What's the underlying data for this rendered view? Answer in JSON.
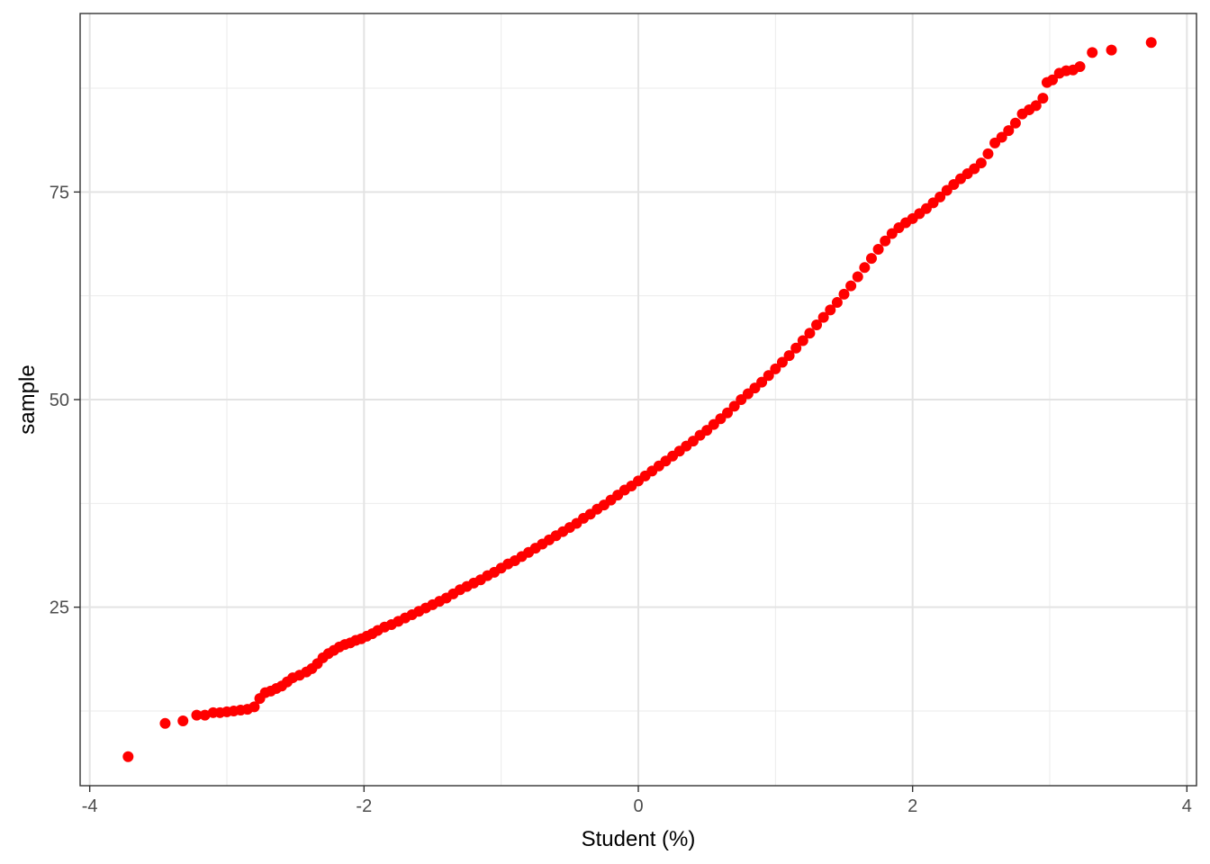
{
  "chart_data": {
    "type": "scatter",
    "title": "",
    "xlabel": "Student (%)",
    "ylabel": "sample",
    "xlim": [
      -4.07,
      4.07
    ],
    "ylim": [
      3.5,
      96.5
    ],
    "x_ticks": [
      -4,
      -2,
      0,
      2,
      4
    ],
    "y_ticks": [
      25,
      50,
      75
    ],
    "x_minor": [
      -3,
      -1,
      1,
      3
    ],
    "y_minor": [
      12.5,
      37.5,
      62.5,
      87.5
    ],
    "grid": true,
    "legend": "none",
    "point_color": "#ff0000",
    "points": [
      {
        "x": -3.72,
        "y": 7.0
      },
      {
        "x": -3.45,
        "y": 11.0
      },
      {
        "x": -3.32,
        "y": 11.3
      },
      {
        "x": -3.22,
        "y": 12.0
      },
      {
        "x": -3.16,
        "y": 12.0
      },
      {
        "x": -3.1,
        "y": 12.3
      },
      {
        "x": -3.05,
        "y": 12.3
      },
      {
        "x": -3.0,
        "y": 12.4
      },
      {
        "x": -2.95,
        "y": 12.5
      },
      {
        "x": -2.9,
        "y": 12.6
      },
      {
        "x": -2.85,
        "y": 12.7
      },
      {
        "x": -2.8,
        "y": 13.0
      },
      {
        "x": -2.76,
        "y": 14.0
      },
      {
        "x": -2.72,
        "y": 14.7
      },
      {
        "x": -2.68,
        "y": 14.9
      },
      {
        "x": -2.64,
        "y": 15.2
      },
      {
        "x": -2.6,
        "y": 15.5
      },
      {
        "x": -2.56,
        "y": 16.0
      },
      {
        "x": -2.52,
        "y": 16.5
      },
      {
        "x": -2.47,
        "y": 16.8
      },
      {
        "x": -2.42,
        "y": 17.2
      },
      {
        "x": -2.38,
        "y": 17.6
      },
      {
        "x": -2.34,
        "y": 18.2
      },
      {
        "x": -2.3,
        "y": 18.9
      },
      {
        "x": -2.26,
        "y": 19.4
      },
      {
        "x": -2.22,
        "y": 19.8
      },
      {
        "x": -2.18,
        "y": 20.2
      },
      {
        "x": -2.14,
        "y": 20.5
      },
      {
        "x": -2.1,
        "y": 20.7
      },
      {
        "x": -2.06,
        "y": 21.0
      },
      {
        "x": -2.02,
        "y": 21.2
      },
      {
        "x": -1.98,
        "y": 21.5
      },
      {
        "x": -1.94,
        "y": 21.8
      },
      {
        "x": -1.9,
        "y": 22.2
      },
      {
        "x": -1.85,
        "y": 22.6
      },
      {
        "x": -1.8,
        "y": 22.9
      },
      {
        "x": -1.75,
        "y": 23.3
      },
      {
        "x": -1.7,
        "y": 23.7
      },
      {
        "x": -1.65,
        "y": 24.1
      },
      {
        "x": -1.6,
        "y": 24.5
      },
      {
        "x": -1.55,
        "y": 24.9
      },
      {
        "x": -1.5,
        "y": 25.3
      },
      {
        "x": -1.45,
        "y": 25.7
      },
      {
        "x": -1.4,
        "y": 26.1
      },
      {
        "x": -1.35,
        "y": 26.6
      },
      {
        "x": -1.3,
        "y": 27.1
      },
      {
        "x": -1.25,
        "y": 27.5
      },
      {
        "x": -1.2,
        "y": 27.9
      },
      {
        "x": -1.15,
        "y": 28.3
      },
      {
        "x": -1.1,
        "y": 28.8
      },
      {
        "x": -1.05,
        "y": 29.2
      },
      {
        "x": -1.0,
        "y": 29.7
      },
      {
        "x": -0.95,
        "y": 30.2
      },
      {
        "x": -0.9,
        "y": 30.6
      },
      {
        "x": -0.85,
        "y": 31.1
      },
      {
        "x": -0.8,
        "y": 31.6
      },
      {
        "x": -0.75,
        "y": 32.1
      },
      {
        "x": -0.7,
        "y": 32.6
      },
      {
        "x": -0.65,
        "y": 33.1
      },
      {
        "x": -0.6,
        "y": 33.6
      },
      {
        "x": -0.55,
        "y": 34.1
      },
      {
        "x": -0.5,
        "y": 34.6
      },
      {
        "x": -0.45,
        "y": 35.1
      },
      {
        "x": -0.4,
        "y": 35.7
      },
      {
        "x": -0.35,
        "y": 36.2
      },
      {
        "x": -0.3,
        "y": 36.8
      },
      {
        "x": -0.25,
        "y": 37.3
      },
      {
        "x": -0.2,
        "y": 37.9
      },
      {
        "x": -0.15,
        "y": 38.5
      },
      {
        "x": -0.1,
        "y": 39.1
      },
      {
        "x": -0.05,
        "y": 39.6
      },
      {
        "x": 0.0,
        "y": 40.2
      },
      {
        "x": 0.05,
        "y": 40.8
      },
      {
        "x": 0.1,
        "y": 41.4
      },
      {
        "x": 0.15,
        "y": 42.0
      },
      {
        "x": 0.2,
        "y": 42.6
      },
      {
        "x": 0.25,
        "y": 43.2
      },
      {
        "x": 0.3,
        "y": 43.8
      },
      {
        "x": 0.35,
        "y": 44.4
      },
      {
        "x": 0.4,
        "y": 45.0
      },
      {
        "x": 0.45,
        "y": 45.7
      },
      {
        "x": 0.5,
        "y": 46.3
      },
      {
        "x": 0.55,
        "y": 47.0
      },
      {
        "x": 0.6,
        "y": 47.7
      },
      {
        "x": 0.65,
        "y": 48.4
      },
      {
        "x": 0.7,
        "y": 49.2
      },
      {
        "x": 0.75,
        "y": 50.0
      },
      {
        "x": 0.8,
        "y": 50.7
      },
      {
        "x": 0.85,
        "y": 51.4
      },
      {
        "x": 0.9,
        "y": 52.1
      },
      {
        "x": 0.95,
        "y": 52.9
      },
      {
        "x": 1.0,
        "y": 53.7
      },
      {
        "x": 1.05,
        "y": 54.5
      },
      {
        "x": 1.1,
        "y": 55.3
      },
      {
        "x": 1.15,
        "y": 56.2
      },
      {
        "x": 1.2,
        "y": 57.1
      },
      {
        "x": 1.25,
        "y": 58.0
      },
      {
        "x": 1.3,
        "y": 59.0
      },
      {
        "x": 1.35,
        "y": 59.9
      },
      {
        "x": 1.4,
        "y": 60.8
      },
      {
        "x": 1.45,
        "y": 61.7
      },
      {
        "x": 1.5,
        "y": 62.7
      },
      {
        "x": 1.55,
        "y": 63.7
      },
      {
        "x": 1.6,
        "y": 64.8
      },
      {
        "x": 1.65,
        "y": 65.9
      },
      {
        "x": 1.7,
        "y": 67.0
      },
      {
        "x": 1.75,
        "y": 68.1
      },
      {
        "x": 1.8,
        "y": 69.1
      },
      {
        "x": 1.85,
        "y": 70.0
      },
      {
        "x": 1.9,
        "y": 70.7
      },
      {
        "x": 1.95,
        "y": 71.3
      },
      {
        "x": 2.0,
        "y": 71.8
      },
      {
        "x": 2.05,
        "y": 72.4
      },
      {
        "x": 2.1,
        "y": 73.0
      },
      {
        "x": 2.15,
        "y": 73.7
      },
      {
        "x": 2.2,
        "y": 74.4
      },
      {
        "x": 2.25,
        "y": 75.2
      },
      {
        "x": 2.3,
        "y": 75.9
      },
      {
        "x": 2.35,
        "y": 76.6
      },
      {
        "x": 2.4,
        "y": 77.2
      },
      {
        "x": 2.45,
        "y": 77.8
      },
      {
        "x": 2.5,
        "y": 78.5
      },
      {
        "x": 2.55,
        "y": 79.6
      },
      {
        "x": 2.6,
        "y": 80.9
      },
      {
        "x": 2.65,
        "y": 81.6
      },
      {
        "x": 2.7,
        "y": 82.4
      },
      {
        "x": 2.75,
        "y": 83.3
      },
      {
        "x": 2.8,
        "y": 84.4
      },
      {
        "x": 2.85,
        "y": 84.9
      },
      {
        "x": 2.9,
        "y": 85.4
      },
      {
        "x": 2.95,
        "y": 86.3
      },
      {
        "x": 2.98,
        "y": 88.2
      },
      {
        "x": 3.02,
        "y": 88.5
      },
      {
        "x": 3.07,
        "y": 89.3
      },
      {
        "x": 3.12,
        "y": 89.6
      },
      {
        "x": 3.17,
        "y": 89.7
      },
      {
        "x": 3.22,
        "y": 90.1
      },
      {
        "x": 3.31,
        "y": 91.8
      },
      {
        "x": 3.45,
        "y": 92.1
      },
      {
        "x": 3.74,
        "y": 93.0
      }
    ]
  }
}
